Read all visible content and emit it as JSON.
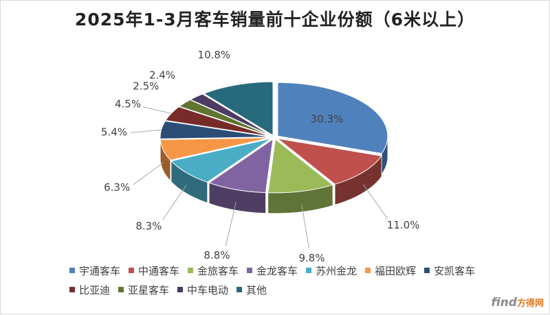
{
  "chart_data": {
    "type": "pie",
    "title": "2025年1-3月客车销量前十企业份额（6米以上）",
    "categories": [
      "宇通客车",
      "中通客车",
      "金旅客车",
      "金龙客车",
      "苏州金龙",
      "福田欧辉",
      "安凯客车",
      "比亚迪",
      "亚星客车",
      "中车电动",
      "其他"
    ],
    "values": [
      30.3,
      11.0,
      9.8,
      8.8,
      8.3,
      6.3,
      5.4,
      4.5,
      2.5,
      2.4,
      10.8
    ],
    "labels": [
      "30.3%",
      "11.0%",
      "9.8%",
      "8.8%",
      "8.3%",
      "6.3%",
      "5.4%",
      "4.5%",
      "2.5%",
      "2.4%",
      "10.8%"
    ],
    "colors": [
      "#4F81BD",
      "#C0504D",
      "#9BBB59",
      "#8064A2",
      "#4BACC6",
      "#F79646",
      "#2C4D75",
      "#772C2A",
      "#5F7530",
      "#4D3B62",
      "#276A7C"
    ],
    "legend_position": "bottom",
    "style": "3d-exploded-tilted"
  },
  "watermark": {
    "brand": "find",
    "accent": "方得网"
  }
}
